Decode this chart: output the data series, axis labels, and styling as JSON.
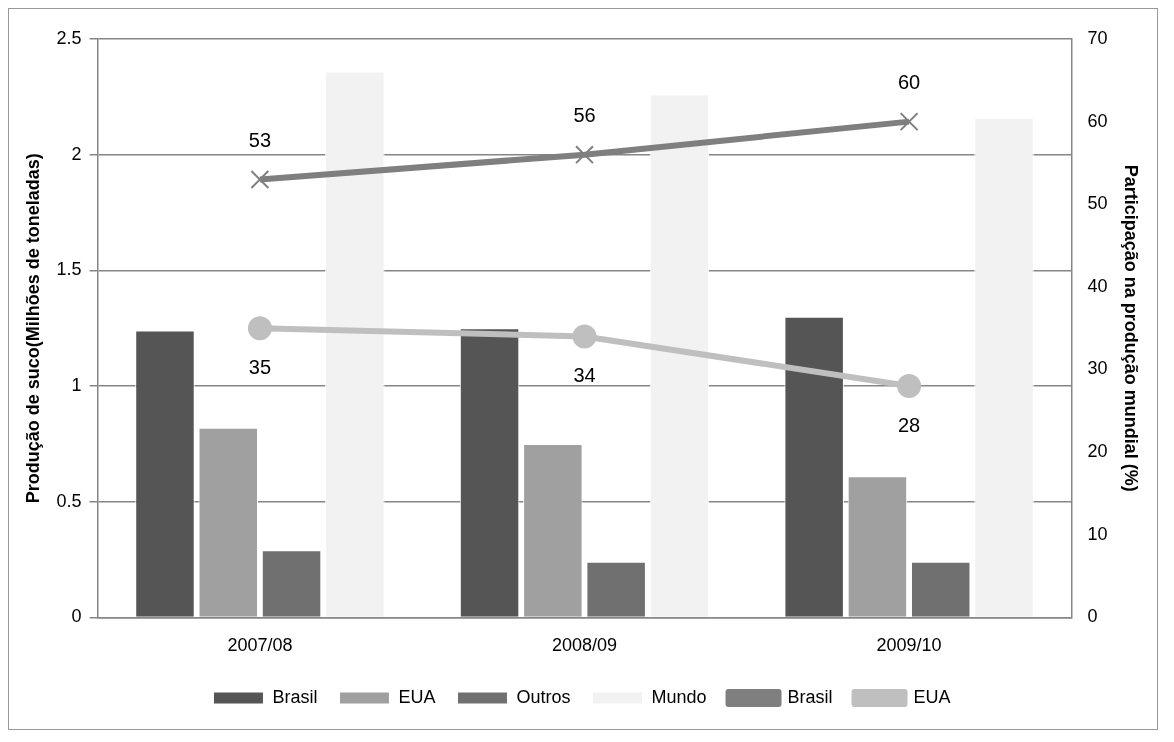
{
  "chart_data": {
    "type": "bar",
    "ylabel": "Produção de suco(Milhões de toneladas)",
    "y2label": "Participação na produção mundial (%)",
    "categories": [
      "2007/08",
      "2008/09",
      "2009/10"
    ],
    "series": [
      {
        "name": "Brasil",
        "color": "#555555",
        "values": [
          1.24,
          1.25,
          1.3
        ]
      },
      {
        "name": "EUA",
        "color": "#a0a0a0",
        "values": [
          0.82,
          0.75,
          0.61
        ]
      },
      {
        "name": "Outros",
        "color": "#707070",
        "values": [
          0.29,
          0.24,
          0.24
        ]
      },
      {
        "name": "Mundo",
        "color": "#f2f2f2",
        "values": [
          2.36,
          2.26,
          2.16
        ]
      },
      {
        "name": "Brasil",
        "type": "line",
        "axis": "y2",
        "color": "#7f7f7f",
        "marker": "cross",
        "values": [
          53,
          56,
          60
        ],
        "value_labels": [
          "53",
          "56",
          "60"
        ]
      },
      {
        "name": "EUA",
        "type": "line",
        "axis": "y2",
        "color": "#bfbfbf",
        "marker": "circle",
        "values": [
          35,
          34,
          28
        ],
        "value_labels": [
          "35",
          "34",
          "28"
        ]
      }
    ],
    "ylim": [
      0,
      2.5
    ],
    "yticks": [
      0,
      0.5,
      1,
      1.5,
      2,
      2.5
    ],
    "y2lim": [
      0,
      70
    ],
    "y2ticks": [
      0,
      10,
      20,
      30,
      40,
      50,
      60,
      70
    ],
    "grid": "y",
    "legend": "bottom"
  }
}
